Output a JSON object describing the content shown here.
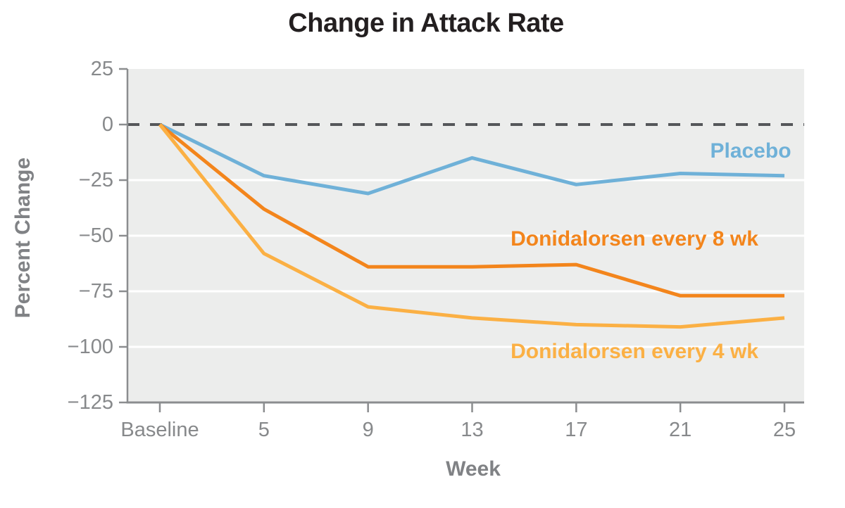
{
  "figure_title": "Change in Attack Rate",
  "chart_data": {
    "type": "line",
    "title": "Change in Attack Rate",
    "xlabel": "Week",
    "ylabel": "Percent Change",
    "categories": [
      "Baseline",
      "5",
      "9",
      "13",
      "17",
      "21",
      "25"
    ],
    "ylim": [
      -125,
      25
    ],
    "yticks": [
      25,
      0,
      -25,
      -50,
      -75,
      -100,
      -125
    ],
    "ytick_labels": [
      "25",
      "0",
      "−25",
      "−50",
      "−75",
      "−100",
      "−125"
    ],
    "grid": "horizontal white gridlines on light-gray panel",
    "zero_reference_line": "dashed",
    "legend_position": "inline labels beside lines",
    "series": [
      {
        "name": "Placebo",
        "color": "#6fb1d8",
        "values": [
          0,
          -23,
          -31,
          -15,
          -27,
          -22,
          -23
        ]
      },
      {
        "name": "Donidalorsen every 8 wk",
        "color": "#f3851c",
        "values": [
          0,
          -38,
          -64,
          -64,
          -63,
          -77,
          -77
        ]
      },
      {
        "name": "Donidalorsen every 4 wk",
        "color": "#fbb044",
        "values": [
          0,
          -58,
          -82,
          -87,
          -90,
          -91,
          -87
        ]
      }
    ],
    "colors": {
      "panel_background": "#ecedec",
      "gridline": "#ffffff",
      "zero_line": "#55575a",
      "axis": "#8b8d8f",
      "tick_text": "#87898b",
      "axis_title_text": "#808285",
      "title_text": "#231f20"
    }
  }
}
